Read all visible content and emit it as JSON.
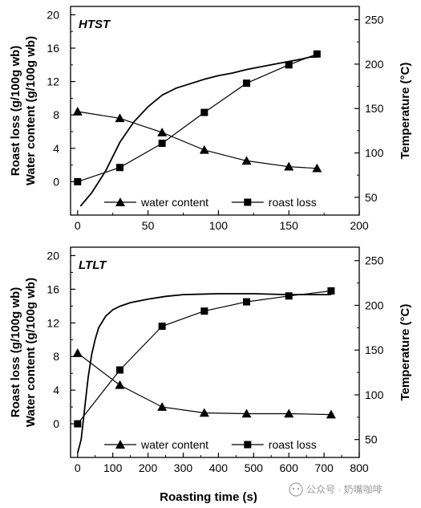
{
  "chart_data": [
    {
      "type": "line",
      "panel_label": "HTST",
      "ylabel_left": [
        "Roast loss (g/100g wb)",
        "Water content (g/100g wb)"
      ],
      "ylabel_right": "Temperature (°C)",
      "xlabel": "",
      "xlim": [
        -5,
        200
      ],
      "xticks": [
        0,
        50,
        100,
        150,
        200
      ],
      "ylim_left": [
        -4,
        21
      ],
      "yticks_left": [
        0,
        4,
        8,
        12,
        16,
        20
      ],
      "ylim_right": [
        30,
        265
      ],
      "yticks_right": [
        50,
        100,
        150,
        200,
        250
      ],
      "legend_position": "bottom",
      "series": [
        {
          "name": "water content",
          "marker": "triangle",
          "axis": "left",
          "x": [
            0,
            30,
            60,
            90,
            120,
            150,
            170
          ],
          "y": [
            8.4,
            7.6,
            5.9,
            3.8,
            2.5,
            1.8,
            1.6
          ]
        },
        {
          "name": "roast loss",
          "marker": "square",
          "axis": "left",
          "x": [
            0,
            30,
            60,
            90,
            120,
            150,
            170
          ],
          "y": [
            0.0,
            1.7,
            4.6,
            8.3,
            11.8,
            14.0,
            15.3
          ]
        },
        {
          "name": "",
          "marker": "none",
          "axis": "right",
          "x": [
            2,
            10,
            20,
            30,
            40,
            50,
            60,
            70,
            80,
            90,
            100,
            110,
            120,
            130,
            140,
            150,
            160,
            165,
            170
          ],
          "y": [
            40,
            55,
            80,
            112,
            135,
            152,
            165,
            173,
            178,
            183,
            187,
            190,
            194,
            197,
            200,
            203,
            206,
            208,
            208
          ]
        }
      ]
    },
    {
      "type": "line",
      "panel_label": "LTLT",
      "ylabel_left": [
        "Roast loss (g/100g wb)",
        "Water content (g/100g wb)"
      ],
      "ylabel_right": "Temperature (°C)",
      "xlabel": "Roasting time (s)",
      "xlim": [
        -20,
        800
      ],
      "xticks": [
        0,
        100,
        200,
        300,
        400,
        500,
        600,
        700,
        800
      ],
      "ylim_left": [
        -4,
        21
      ],
      "yticks_left": [
        0,
        4,
        8,
        12,
        16,
        20
      ],
      "ylim_right": [
        30,
        265
      ],
      "yticks_right": [
        50,
        100,
        150,
        200,
        250
      ],
      "legend_position": "bottom",
      "series": [
        {
          "name": "water content",
          "marker": "triangle",
          "axis": "left",
          "x": [
            0,
            120,
            240,
            360,
            480,
            600,
            720
          ],
          "y": [
            8.4,
            4.6,
            2.0,
            1.3,
            1.2,
            1.2,
            1.1
          ]
        },
        {
          "name": "roast loss",
          "marker": "square",
          "axis": "left",
          "x": [
            0,
            120,
            240,
            360,
            480,
            600,
            720
          ],
          "y": [
            0.0,
            6.4,
            11.6,
            13.4,
            14.5,
            15.2,
            15.8
          ]
        },
        {
          "name": "",
          "marker": "none",
          "axis": "right",
          "x": [
            0,
            10,
            20,
            30,
            40,
            50,
            60,
            80,
            100,
            120,
            150,
            200,
            250,
            300,
            400,
            500,
            600,
            720
          ],
          "y": [
            35,
            50,
            85,
            120,
            145,
            162,
            175,
            188,
            195,
            199,
            203,
            207,
            210,
            212,
            213,
            213,
            212,
            212
          ]
        }
      ]
    }
  ],
  "watermark": "公众号 · 奶嘴咖啡"
}
